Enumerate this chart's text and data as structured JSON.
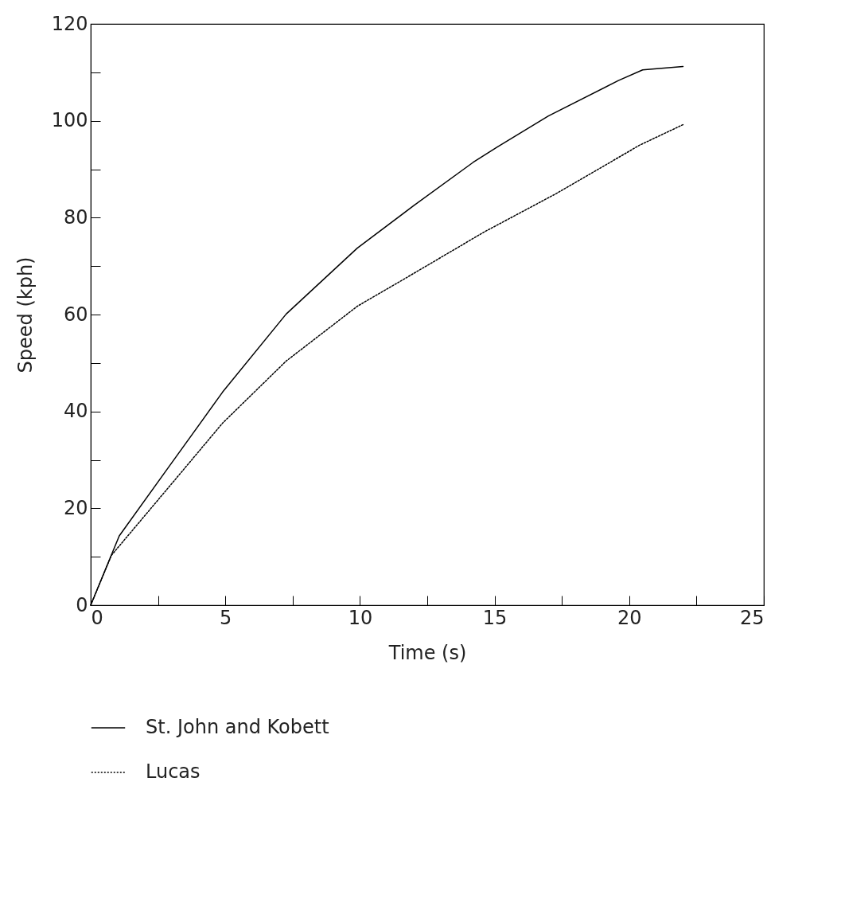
{
  "chart_data": {
    "type": "line",
    "xlabel": "Time (s)",
    "ylabel": "Speed (kph)",
    "xlim": [
      0,
      25
    ],
    "ylim": [
      0,
      120
    ],
    "xticks": [
      0,
      {
        "value": 2.5,
        "label": null
      },
      5,
      {
        "value": 7.5,
        "label": null
      },
      10,
      {
        "value": 12.5,
        "label": null
      },
      15,
      {
        "value": 17.5,
        "label": null
      },
      20,
      {
        "value": 22.5,
        "label": null
      },
      25
    ],
    "yticks": [
      0,
      {
        "value": 10,
        "label": null
      },
      20,
      {
        "value": 30,
        "label": null
      },
      40,
      {
        "value": 50,
        "label": null
      },
      60,
      {
        "value": 70,
        "label": null
      },
      80,
      {
        "value": 90,
        "label": null
      },
      100,
      {
        "value": 110,
        "label": null
      },
      120
    ],
    "grid": false,
    "legend": "bottom",
    "marker": "none",
    "series": [
      {
        "name": "St. John and Kobett",
        "color": "#000000",
        "line_style": "solid",
        "x": [
          0,
          1.06,
          2.83,
          4.9,
          7.26,
          9.9,
          12.0,
          14.2,
          15.1,
          17.0,
          19.6,
          20.5,
          22.0
        ],
        "values": [
          0,
          14.3,
          28.0,
          44.0,
          60.1,
          73.7,
          82.5,
          91.4,
          94.6,
          101,
          108.3,
          110.5,
          111.2
        ]
      },
      {
        "name": "Lucas",
        "color": "#000000",
        "line_style": "dotted",
        "x": [
          0,
          0.77,
          2.83,
          4.9,
          7.26,
          9.9,
          12.0,
          14.6,
          17.3,
          20.4,
          22.0
        ],
        "values": [
          0,
          10.3,
          23.9,
          37.6,
          50.4,
          61.7,
          68.5,
          77,
          85,
          95,
          99.2
        ]
      }
    ]
  }
}
